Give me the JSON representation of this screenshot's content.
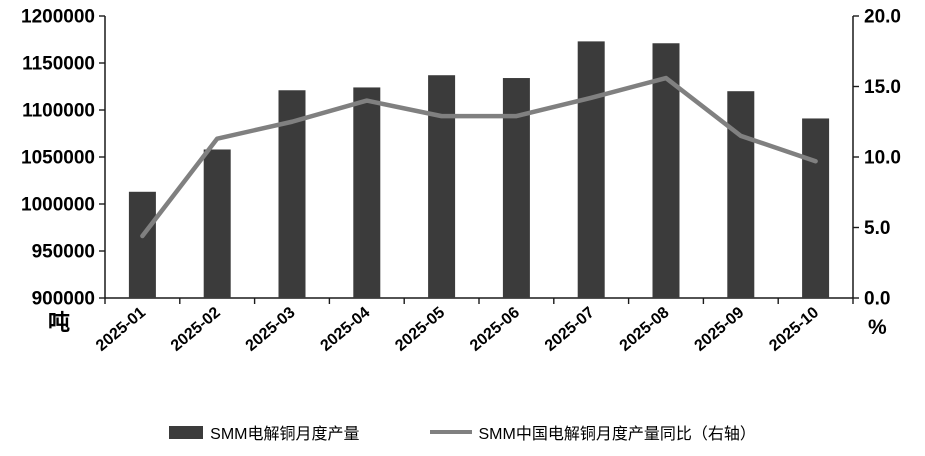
{
  "chart_data": {
    "type": "combo",
    "title": "",
    "categories": [
      "2025-01",
      "2025-02",
      "2025-03",
      "2025-04",
      "2025-05",
      "2025-06",
      "2025-07",
      "2025-08",
      "2025-09",
      "2025-10"
    ],
    "series": [
      {
        "name": "SMM电解铜月度产量",
        "type": "bar",
        "axis": "left",
        "color": "#3b3b3b",
        "values": [
          1013000,
          1058000,
          1121000,
          1124000,
          1137000,
          1134000,
          1173000,
          1171000,
          1120000,
          1091000
        ]
      },
      {
        "name": "SMM中国电解铜月度产量同比（右轴）",
        "type": "line",
        "axis": "right",
        "color": "#808080",
        "values": [
          4.4,
          11.3,
          12.5,
          14.0,
          12.9,
          12.9,
          14.2,
          15.6,
          11.5,
          9.7
        ]
      }
    ],
    "left_axis": {
      "min": 900000,
      "max": 1200000,
      "step": 50000,
      "unit": "吨",
      "tick_labels": [
        "900000",
        "950000",
        "1000000",
        "1050000",
        "1100000",
        "1150000",
        "1200000"
      ]
    },
    "right_axis": {
      "min": 0,
      "max": 20,
      "step": 5,
      "unit": "%",
      "tick_labels": [
        "0.0",
        "5.0",
        "10.0",
        "15.0",
        "20.0"
      ]
    },
    "grid": false,
    "legend_position": "bottom",
    "axis_color": "#1a1a1a",
    "tick_label_color": "#000000"
  }
}
